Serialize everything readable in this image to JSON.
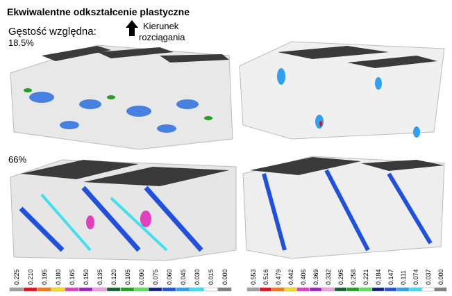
{
  "header": {
    "title": "Ekwiwalentne odkształcenie plastyczne",
    "density_label": "Gęstość względna:",
    "density_top": "18.5%",
    "direction_line1": "Kierunek",
    "direction_line2": "rozciągania",
    "density_bottom": "66%"
  },
  "legends": [
    {
      "labels": [
        "0.225",
        "0.210",
        "0.195",
        "0.180",
        "0.165",
        "0.150",
        "0.135",
        "0.120",
        "0.105",
        "0.090",
        "0.075",
        "0.060",
        "0.045",
        "0.030",
        "0.015",
        "0.000"
      ]
    },
    {
      "labels": [
        "0.553",
        "0.516",
        "0.479",
        "0.442",
        "0.406",
        "0.369",
        "0.332",
        "0.295",
        "0.258",
        "0.221",
        "0.184",
        "0.147",
        "0.111",
        "0.074",
        "0.037",
        "0.000"
      ]
    }
  ],
  "legend_colors": [
    "#a0a0a0",
    "#e0101a",
    "#f07818",
    "#f0e020",
    "#e040c0",
    "#a020c0",
    "#f0a0e0",
    "#106030",
    "#20a020",
    "#60e060",
    "#102080",
    "#2050e0",
    "#30a0f0",
    "#40e0f0",
    "#ffffff",
    "#808080"
  ]
}
